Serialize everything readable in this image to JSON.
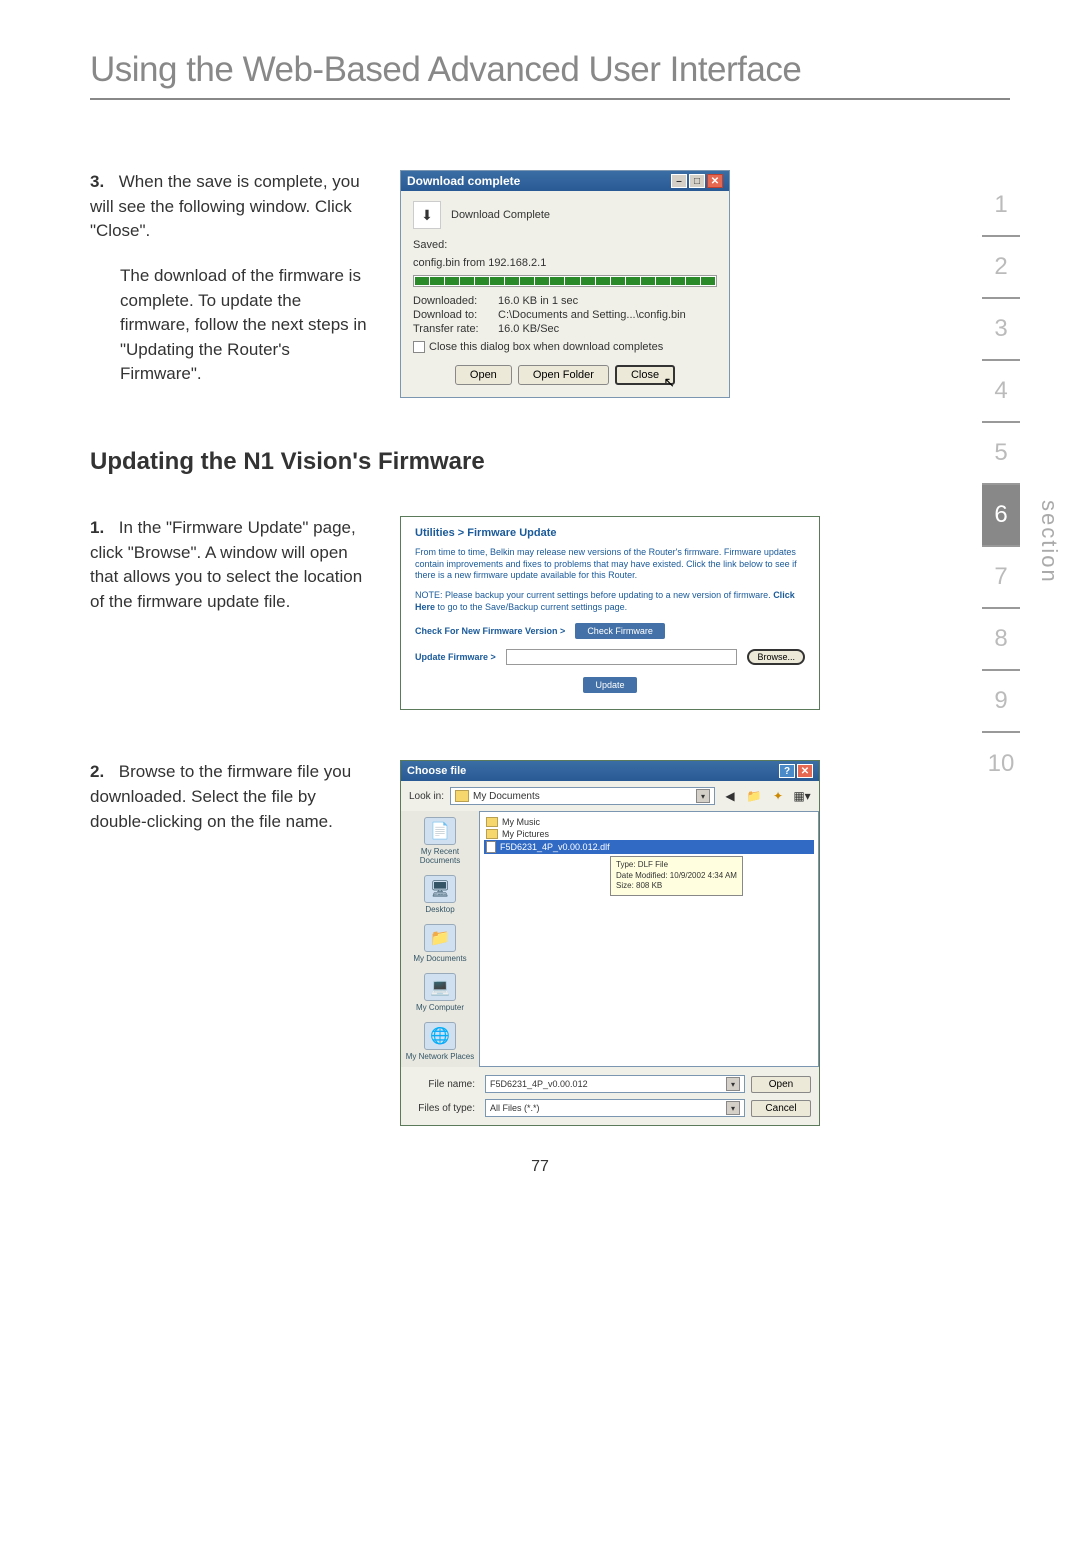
{
  "page": {
    "title": "Using the Web-Based Advanced User Interface",
    "subheading": "Updating the N1 Vision's Firmware",
    "page_number": "77"
  },
  "steps": {
    "s3": {
      "num": "3.",
      "p1": "When the save is complete, you will see the following window. Click \"Close\".",
      "p2": "The download of the firmware is complete. To update the firmware, follow the next steps in \"Updating the Router's Firmware\"."
    },
    "s1": {
      "num": "1.",
      "p1": "In the \"Firmware Update\" page, click \"Browse\". A window will open that allows you to select the location of the firmware update file."
    },
    "s2": {
      "num": "2.",
      "p1": "Browse to the firmware file you downloaded. Select the file by double-clicking on the file name."
    }
  },
  "sidenav": {
    "items": [
      "1",
      "2",
      "3",
      "4",
      "5",
      "6",
      "7",
      "8",
      "9",
      "10"
    ],
    "active_index": 5,
    "section_label": "section"
  },
  "download_dialog": {
    "title": "Download complete",
    "heading": "Download Complete",
    "saved_label": "Saved:",
    "saved_file": "config.bin from 192.168.2.1",
    "downloaded_label": "Downloaded:",
    "downloaded_value": "16.0 KB in 1 sec",
    "downloadto_label": "Download to:",
    "downloadto_value": "C:\\Documents and Setting...\\config.bin",
    "transferrate_label": "Transfer rate:",
    "transferrate_value": "16.0 KB/Sec",
    "checkbox_label": "Close this dialog box when download completes",
    "btn_open": "Open",
    "btn_openfolder": "Open Folder",
    "btn_close": "Close",
    "titlebar_color": "#2a5a94",
    "progress_color": "#2a8a2a"
  },
  "firmware_panel": {
    "breadcrumb": "Utilities > Firmware Update",
    "para1": "From time to time, Belkin may release new versions of the Router's firmware. Firmware updates contain improvements and fixes to problems that may have existed. Click the link below to see if there is a new firmware update available for this Router.",
    "note": "NOTE: Please backup your current settings before updating to a new version of firmware. ",
    "note_link": "Click Here",
    "note_tail": " to go to the Save/Backup current settings page.",
    "check_label": "Check For New Firmware Version >",
    "check_btn": "Check Firmware",
    "update_label": "Update Firmware >",
    "browse_btn": "Browse...",
    "update_btn": "Update",
    "link_color": "#1a5a9a",
    "btn_color": "#4472a8"
  },
  "choosefile_dialog": {
    "title": "Choose file",
    "lookin_label": "Look in:",
    "lookin_value": "My Documents",
    "toolbar_icons": [
      "back",
      "up",
      "new",
      "view"
    ],
    "sidebar_items": [
      {
        "label": "My Recent Documents",
        "icon": "📄"
      },
      {
        "label": "Desktop",
        "icon": "🖥"
      },
      {
        "label": "My Documents",
        "icon": "📁"
      },
      {
        "label": "My Computer",
        "icon": "💻"
      },
      {
        "label": "My Network Places",
        "icon": "🌐"
      }
    ],
    "files": [
      {
        "name": "My Music",
        "type": "folder"
      },
      {
        "name": "My Pictures",
        "type": "folder"
      },
      {
        "name": "F5D6231_4P_v0.00.012.dlf",
        "type": "file",
        "selected": true
      }
    ],
    "tooltip": {
      "type": "Type: DLF File",
      "date": "Date Modified: 10/9/2002 4:34 AM",
      "size": "Size: 808 KB"
    },
    "filename_label": "File name:",
    "filename_value": "F5D6231_4P_v0.00.012",
    "filetype_label": "Files of type:",
    "filetype_value": "All Files (*.*)",
    "btn_open": "Open",
    "btn_cancel": "Cancel"
  }
}
